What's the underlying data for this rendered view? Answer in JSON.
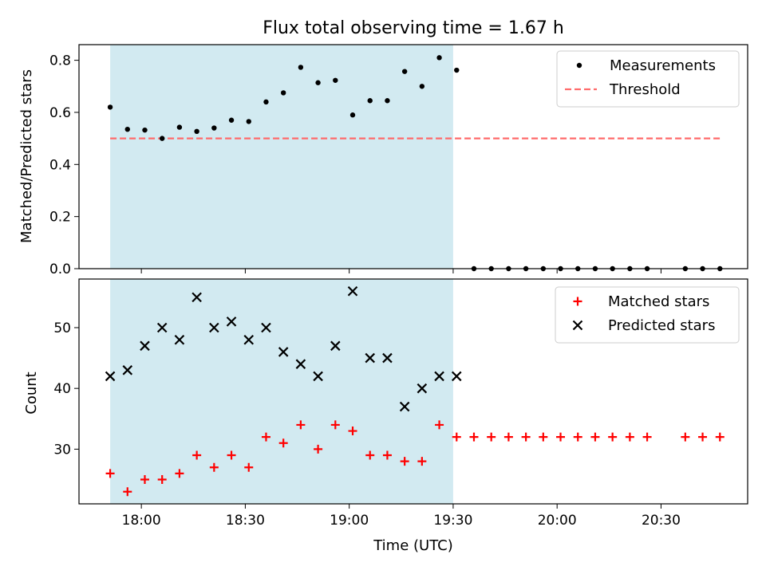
{
  "chart_data": [
    {
      "type": "scatter",
      "title": "Flux total observing time = 1.67 h",
      "ylabel": "Matched/Predicted stars",
      "xlabel": "",
      "xlim": [
        "17:42",
        "20:55"
      ],
      "ylim": [
        0,
        0.86
      ],
      "yticks": [
        0.0,
        0.2,
        0.4,
        0.6,
        0.8
      ],
      "ytick_labels": [
        "0.0",
        "0.2",
        "0.4",
        "0.6",
        "0.8"
      ],
      "shaded_region": {
        "from": "17:51",
        "to": "19:30",
        "color": "#add8e6"
      },
      "legend": {
        "placement": "top-right"
      },
      "series": [
        {
          "name": "Measurements",
          "marker": "dot",
          "color": "#000000",
          "x": [
            "17:51",
            "17:56",
            "18:01",
            "18:06",
            "18:11",
            "18:16",
            "18:21",
            "18:26",
            "18:31",
            "18:36",
            "18:41",
            "18:46",
            "18:51",
            "18:56",
            "19:01",
            "19:06",
            "19:11",
            "19:16",
            "19:21",
            "19:26",
            "19:31",
            "19:36",
            "19:41",
            "19:46",
            "19:51",
            "19:56",
            "20:01",
            "20:06",
            "20:11",
            "20:16",
            "20:21",
            "20:26",
            "20:37",
            "20:42",
            "20:47"
          ],
          "values": [
            0.62,
            0.535,
            0.532,
            0.5,
            0.543,
            0.527,
            0.54,
            0.57,
            0.565,
            0.64,
            0.675,
            0.773,
            0.714,
            0.723,
            0.59,
            0.645,
            0.645,
            0.757,
            0.7,
            0.81,
            0.762,
            0,
            0,
            0,
            0,
            0,
            0,
            0,
            0,
            0,
            0,
            0,
            0,
            0,
            0
          ]
        },
        {
          "name": "Threshold",
          "style": "dashed",
          "color": "#ff6b6b",
          "x": [
            "17:51",
            "20:47"
          ],
          "values": [
            0.5,
            0.5
          ]
        }
      ]
    },
    {
      "type": "scatter",
      "title": "",
      "xlabel": "Time (UTC)",
      "ylabel": "Count",
      "xlim": [
        "17:42",
        "20:55"
      ],
      "ylim": [
        21,
        58
      ],
      "yticks": [
        30,
        40,
        50
      ],
      "ytick_labels": [
        "30",
        "40",
        "50"
      ],
      "xticks": [
        "18:00",
        "18:30",
        "19:00",
        "19:30",
        "20:00",
        "20:30"
      ],
      "xtick_labels": [
        "18:00",
        "18:30",
        "19:00",
        "19:30",
        "20:00",
        "20:30"
      ],
      "shaded_region": {
        "from": "17:51",
        "to": "19:30",
        "color": "#add8e6"
      },
      "legend": {
        "placement": "top-right"
      },
      "series": [
        {
          "name": "Matched stars",
          "marker": "plus",
          "color": "#ff0000",
          "x": [
            "17:51",
            "17:56",
            "18:01",
            "18:06",
            "18:11",
            "18:16",
            "18:21",
            "18:26",
            "18:31",
            "18:36",
            "18:41",
            "18:46",
            "18:51",
            "18:56",
            "19:01",
            "19:06",
            "19:11",
            "19:16",
            "19:21",
            "19:26",
            "19:31",
            "19:36",
            "19:41",
            "19:46",
            "19:51",
            "19:56",
            "20:01",
            "20:06",
            "20:11",
            "20:16",
            "20:21",
            "20:26",
            "20:37",
            "20:42",
            "20:47"
          ],
          "values": [
            26,
            23,
            25,
            25,
            26,
            29,
            27,
            29,
            27,
            32,
            31,
            34,
            30,
            34,
            33,
            29,
            29,
            28,
            28,
            34,
            32,
            32,
            32,
            32,
            32,
            32,
            32,
            32,
            32,
            32,
            32,
            32,
            32,
            32,
            32
          ]
        },
        {
          "name": "Predicted stars",
          "marker": "x",
          "color": "#000000",
          "x": [
            "17:51",
            "17:56",
            "18:01",
            "18:06",
            "18:11",
            "18:16",
            "18:21",
            "18:26",
            "18:31",
            "18:36",
            "18:41",
            "18:46",
            "18:51",
            "18:56",
            "19:01",
            "19:06",
            "19:11",
            "19:16",
            "19:21",
            "19:26",
            "19:31"
          ],
          "values": [
            42,
            43,
            47,
            50,
            48,
            55,
            50,
            51,
            48,
            50,
            46,
            44,
            42,
            47,
            56,
            45,
            45,
            37,
            40,
            42,
            42
          ]
        }
      ]
    }
  ]
}
